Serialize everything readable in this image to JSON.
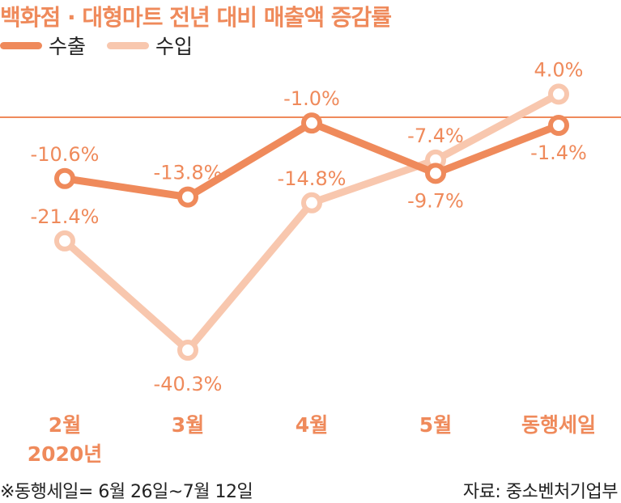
{
  "chart_data": {
    "type": "line",
    "title": "백화점 · 대형마트 전년 대비 매출액 증감률",
    "categories": [
      "2월",
      "3월",
      "4월",
      "5월",
      "동행세일"
    ],
    "category_sublabels": [
      "2020년",
      "",
      "",
      "",
      ""
    ],
    "series": [
      {
        "name": "수출",
        "values": [
          -10.6,
          -13.8,
          -1.0,
          -9.7,
          -1.4
        ],
        "color": "#ef8a5b"
      },
      {
        "name": "수입",
        "values": [
          -21.4,
          -40.3,
          -14.8,
          -7.4,
          4.0
        ],
        "color": "#f8c7ae"
      }
    ],
    "value_labels": [
      [
        "-10.6%",
        "-13.8%",
        "-1.0%",
        "-9.7%",
        "-1.4%"
      ],
      [
        "-21.4%",
        "-40.3%",
        "-14.8%",
        "-7.4%",
        "4.0%"
      ]
    ],
    "baseline": 0,
    "ylim": [
      -45,
      8
    ],
    "grid": false,
    "legend_position": "top-left",
    "axis_label_color": "#ef8a5b"
  },
  "footnote": "※동행세일= 6월 26일~7월 12일",
  "source": "자료: 중소벤처기업부"
}
